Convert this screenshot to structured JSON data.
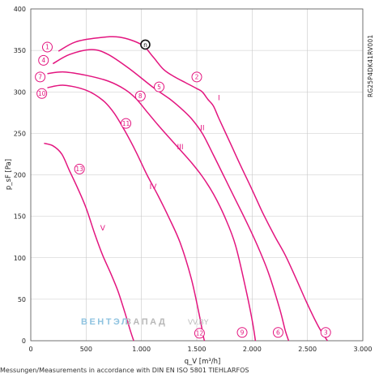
{
  "chart_data": {
    "type": "line",
    "xlabel": "q_V [m³/h]",
    "ylabel": "p_sF [Pa]",
    "xlim": [
      0,
      3000
    ],
    "ylim": [
      0,
      400
    ],
    "x_ticks": [
      "0",
      "500",
      "1.000",
      "1.500",
      "2.000",
      "2.500",
      "3.000"
    ],
    "y_ticks": [
      "0",
      "50",
      "100",
      "150",
      "200",
      "250",
      "300",
      "350",
      "400"
    ],
    "grid": true,
    "model_label": "RG25P4DK41RV001",
    "watermark": {
      "part1": "ВЕНТЭЛ",
      "part2": "ЗАПАД",
      "part3": "VV.BY"
    },
    "footer_note": "Messungen/Measurements in accordance with DIN EN ISO 5801 TIEHLARFOS",
    "series": [
      {
        "name": "I",
        "points": [
          [
            250,
            349
          ],
          [
            400,
            360
          ],
          [
            600,
            365
          ],
          [
            800,
            366
          ],
          [
            1000,
            357
          ],
          [
            1100,
            343
          ],
          [
            1200,
            327
          ],
          [
            1300,
            318
          ],
          [
            1400,
            311
          ],
          [
            1500,
            304
          ],
          [
            1550,
            300
          ],
          [
            1600,
            291
          ],
          [
            1650,
            283
          ],
          [
            1700,
            268
          ],
          [
            1800,
            239
          ],
          [
            1900,
            210
          ],
          [
            2000,
            182
          ],
          [
            2100,
            153
          ],
          [
            2200,
            127
          ],
          [
            2300,
            103
          ],
          [
            2400,
            74
          ],
          [
            2500,
            44
          ],
          [
            2600,
            17
          ],
          [
            2680,
            0
          ]
        ]
      },
      {
        "name": "II",
        "points": [
          [
            200,
            334
          ],
          [
            350,
            345
          ],
          [
            550,
            351
          ],
          [
            700,
            345
          ],
          [
            900,
            327
          ],
          [
            1100,
            306
          ],
          [
            1250,
            292
          ],
          [
            1350,
            281
          ],
          [
            1450,
            268
          ],
          [
            1550,
            250
          ],
          [
            1650,
            224
          ],
          [
            1750,
            197
          ],
          [
            1850,
            170
          ],
          [
            1950,
            143
          ],
          [
            2050,
            114
          ],
          [
            2150,
            81
          ],
          [
            2250,
            38
          ],
          [
            2300,
            12
          ],
          [
            2330,
            0
          ]
        ]
      },
      {
        "name": "III",
        "points": [
          [
            150,
            322
          ],
          [
            300,
            324
          ],
          [
            500,
            320
          ],
          [
            700,
            313
          ],
          [
            850,
            303
          ],
          [
            950,
            292
          ],
          [
            1050,
            276
          ],
          [
            1150,
            260
          ],
          [
            1250,
            245
          ],
          [
            1350,
            230
          ],
          [
            1450,
            215
          ],
          [
            1550,
            198
          ],
          [
            1650,
            177
          ],
          [
            1750,
            150
          ],
          [
            1850,
            115
          ],
          [
            1950,
            58
          ],
          [
            2000,
            25
          ],
          [
            2030,
            0
          ]
        ]
      },
      {
        "name": "IV",
        "points": [
          [
            150,
            305
          ],
          [
            300,
            308
          ],
          [
            500,
            302
          ],
          [
            650,
            290
          ],
          [
            750,
            275
          ],
          [
            850,
            253
          ],
          [
            950,
            228
          ],
          [
            1050,
            200
          ],
          [
            1150,
            175
          ],
          [
            1250,
            148
          ],
          [
            1350,
            118
          ],
          [
            1450,
            75
          ],
          [
            1520,
            33
          ],
          [
            1560,
            5
          ],
          [
            1570,
            0
          ]
        ]
      },
      {
        "name": "V",
        "points": [
          [
            120,
            238
          ],
          [
            200,
            235
          ],
          [
            280,
            225
          ],
          [
            350,
            205
          ],
          [
            420,
            185
          ],
          [
            500,
            160
          ],
          [
            580,
            128
          ],
          [
            650,
            103
          ],
          [
            720,
            82
          ],
          [
            790,
            59
          ],
          [
            850,
            34
          ],
          [
            900,
            12
          ],
          [
            930,
            0
          ]
        ]
      }
    ],
    "markers": [
      {
        "label": "1",
        "x": 150,
        "y": 354
      },
      {
        "label": "4",
        "x": 115,
        "y": 338
      },
      {
        "label": "7",
        "x": 85,
        "y": 318
      },
      {
        "label": "10",
        "x": 100,
        "y": 298
      },
      {
        "label": "13",
        "x": 440,
        "y": 207
      },
      {
        "label": "11",
        "x": 860,
        "y": 262
      },
      {
        "label": "8",
        "x": 990,
        "y": 295
      },
      {
        "label": "5",
        "x": 1160,
        "y": 306
      },
      {
        "label": "2",
        "x": 1500,
        "y": 318
      },
      {
        "label": "12",
        "x": 1525,
        "y": 9
      },
      {
        "label": "9",
        "x": 1910,
        "y": 10
      },
      {
        "label": "6",
        "x": 2235,
        "y": 10
      },
      {
        "label": "3",
        "x": 2665,
        "y": 10
      }
    ],
    "highlight_marker": {
      "label": "n",
      "x": 1035,
      "y": 357
    },
    "curve_labels": [
      {
        "label": "I",
        "x": 1700,
        "y": 290
      },
      {
        "label": "II",
        "x": 1550,
        "y": 254
      },
      {
        "label": "III",
        "x": 1350,
        "y": 231
      },
      {
        "label": "IV",
        "x": 1105,
        "y": 183
      },
      {
        "label": "V",
        "x": 650,
        "y": 133
      }
    ],
    "colors": {
      "curve": "#e3157f",
      "grid": "#c8c8c8",
      "axis": "#555555"
    }
  }
}
